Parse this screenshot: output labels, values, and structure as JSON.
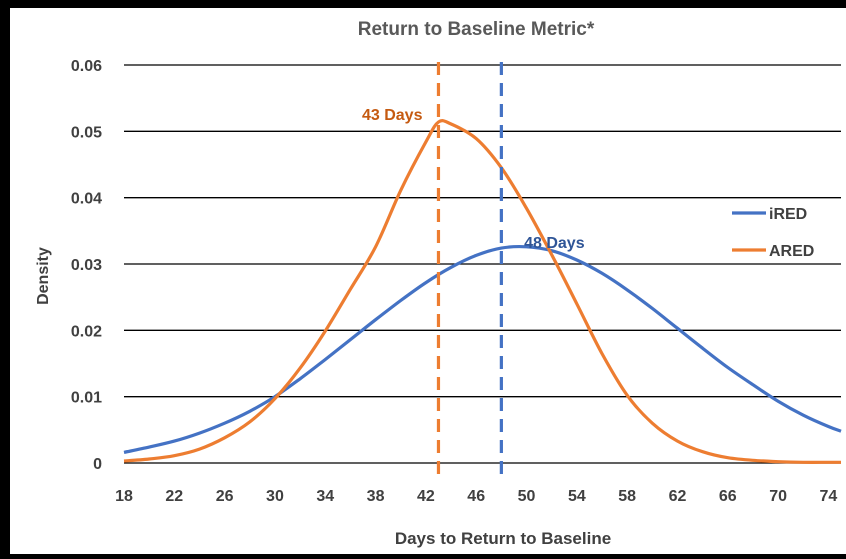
{
  "colors": {
    "background": "#000000",
    "panel": "#ffffff",
    "gridline": "#000000",
    "text": "#404040",
    "iRED": "#4472C4",
    "ARED": "#ED7D31",
    "annotation_ired": "#2F5597",
    "annotation_ared": "#C55A11"
  },
  "chart_data": {
    "type": "line",
    "title": "Return to Baseline Metric*",
    "xlabel": "Days to Return to Baseline",
    "ylabel": "Density",
    "xlim": [
      18,
      75
    ],
    "ylim": [
      0,
      0.06
    ],
    "x_ticks": [
      18,
      22,
      26,
      30,
      34,
      38,
      42,
      46,
      50,
      54,
      58,
      62,
      66,
      70,
      74
    ],
    "y_ticks": [
      0,
      0.01,
      0.02,
      0.03,
      0.04,
      0.05,
      0.06
    ],
    "y_tick_labels": [
      "0",
      "0.01",
      "0.02",
      "0.03",
      "0.04",
      "0.05",
      "0.06"
    ],
    "grid": "horizontal",
    "legend_position": "right",
    "series": [
      {
        "name": "iRED",
        "color": "#4472C4",
        "x": [
          18,
          20,
          22,
          24,
          26,
          28,
          30,
          32,
          34,
          36,
          38,
          40,
          42,
          44,
          46,
          48,
          50,
          52,
          54,
          56,
          58,
          60,
          62,
          64,
          66,
          68,
          70,
          72,
          74,
          75
        ],
        "y": [
          0.0016,
          0.0024,
          0.0033,
          0.0045,
          0.006,
          0.0078,
          0.01,
          0.0127,
          0.0156,
          0.0186,
          0.0216,
          0.0245,
          0.0272,
          0.0295,
          0.0313,
          0.0324,
          0.0326,
          0.032,
          0.0306,
          0.0286,
          0.0261,
          0.0233,
          0.0203,
          0.0173,
          0.0144,
          0.0118,
          0.0093,
          0.0072,
          0.0055,
          0.0048
        ]
      },
      {
        "name": "ARED",
        "color": "#ED7D31",
        "x": [
          18,
          20,
          22,
          24,
          26,
          28,
          30,
          32,
          34,
          36,
          38,
          40,
          42,
          43,
          44,
          46,
          48,
          50,
          52,
          54,
          56,
          58,
          60,
          62,
          64,
          66,
          68,
          70,
          72,
          74,
          75
        ],
        "y": [
          0.0003,
          0.0006,
          0.0011,
          0.0021,
          0.0038,
          0.0062,
          0.0097,
          0.0143,
          0.0199,
          0.0262,
          0.0326,
          0.0411,
          0.0484,
          0.0514,
          0.0511,
          0.0489,
          0.0445,
          0.0384,
          0.0314,
          0.024,
          0.0165,
          0.0102,
          0.006,
          0.0033,
          0.0017,
          0.0008,
          0.0004,
          0.0002,
          0.0001,
          0.0001,
          0.0001
        ]
      }
    ],
    "reference_lines": [
      {
        "x": 43,
        "color": "#ED7D31",
        "style": "dashed",
        "label": "43 Days"
      },
      {
        "x": 48,
        "color": "#4472C4",
        "style": "dashed",
        "label": "48 Days"
      }
    ]
  }
}
